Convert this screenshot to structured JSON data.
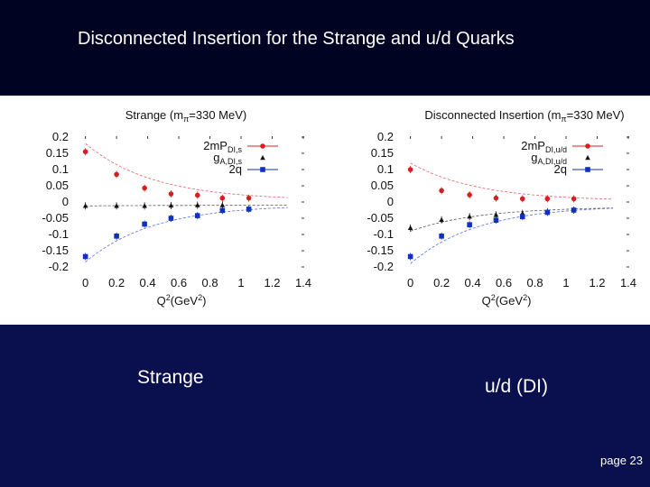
{
  "slide": {
    "title": "Disconnected Insertion for the Strange and u/d Quarks",
    "caption_left": "Strange",
    "caption_right": "u/d (DI)",
    "page": "page 23"
  },
  "colors": {
    "title_band": "#010322",
    "slide_bg": "#0a0f4e",
    "series_red": "#d42020",
    "series_black": "#111111",
    "series_blue": "#1030c0"
  },
  "chart_data": [
    {
      "type": "scatter",
      "title": "Strange (mπ=330 MeV)",
      "title_main": "Strange (m",
      "title_sub": "π",
      "title_tail": "=330 MeV)",
      "xlabel": "Q2(GeV2)",
      "xlabel_parts": [
        "Q",
        "2",
        "(GeV",
        "2",
        ")"
      ],
      "ylabel": "",
      "xlim": [
        -0.05,
        1.4
      ],
      "ylim": [
        -0.2,
        0.2
      ],
      "xticks": [
        "0",
        "0.2",
        "0.4",
        "0.6",
        "0.8",
        "1",
        "1.2",
        "1.4"
      ],
      "yticks": [
        "0.2",
        "0.15",
        "0.1",
        "0.05",
        "0",
        "-0.05",
        "-0.1",
        "-0.15",
        "-0.2"
      ],
      "grid": false,
      "legend_position": "top-right",
      "series": [
        {
          "name": "2mPDI,s",
          "legend_main": "2mP",
          "legend_sub": "DI,s",
          "marker": "circle",
          "color": "#d42020",
          "x": [
            0,
            0.2,
            0.38,
            0.55,
            0.72,
            0.88,
            1.05
          ],
          "y": [
            0.155,
            0.085,
            0.043,
            0.025,
            0.021,
            0.012,
            0.012
          ],
          "fit_x": [
            0,
            1.3
          ],
          "fit_y": [
            0.18,
            0.005
          ]
        },
        {
          "name": "gA,DI,s",
          "legend_main": "g",
          "legend_sub": "A,DI,s",
          "marker": "triangle",
          "color": "#111111",
          "x": [
            0,
            0.2,
            0.38,
            0.55,
            0.72,
            0.88
          ],
          "y": [
            -0.012,
            -0.012,
            -0.012,
            -0.011,
            -0.01,
            -0.01
          ],
          "fit_x": [
            0,
            1.3
          ],
          "fit_y": [
            -0.012,
            -0.01
          ]
        },
        {
          "name": "2q",
          "legend_main": "2q",
          "legend_sub": "",
          "marker": "square",
          "color": "#1030c0",
          "x": [
            0,
            0.2,
            0.38,
            0.55,
            0.72,
            0.88,
            1.05
          ],
          "y": [
            -0.168,
            -0.105,
            -0.068,
            -0.05,
            -0.042,
            -0.026,
            -0.022
          ],
          "fit_x": [
            0,
            1.3
          ],
          "fit_y": [
            -0.185,
            -0.008
          ]
        }
      ]
    },
    {
      "type": "scatter",
      "title": "Disconnected Insertion (mπ=330 MeV)",
      "title_main": "Disconnected Insertion (m",
      "title_sub": "π",
      "title_tail": "=330 MeV)",
      "xlabel": "Q2(GeV2)",
      "xlabel_parts": [
        "Q",
        "2",
        "(GeV",
        "2",
        ")"
      ],
      "ylabel": "",
      "xlim": [
        -0.05,
        1.4
      ],
      "ylim": [
        -0.2,
        0.2
      ],
      "xticks": [
        "0",
        "0.2",
        "0.4",
        "0.6",
        "0.8",
        "1",
        "1.2",
        "1.4"
      ],
      "yticks": [
        "0.2",
        "0.15",
        "0.1",
        "0.05",
        "0",
        "-0.05",
        "-0.1",
        "-0.15",
        "-0.2"
      ],
      "grid": false,
      "legend_position": "top-right",
      "series": [
        {
          "name": "2mPDI,u/d",
          "legend_main": "2mP",
          "legend_sub": "DI,u/d",
          "marker": "circle",
          "color": "#d42020",
          "x": [
            0,
            0.2,
            0.38,
            0.55,
            0.72,
            0.88,
            1.05
          ],
          "y": [
            0.1,
            0.035,
            0.022,
            0.012,
            0.01,
            0.01,
            0.01
          ],
          "fit_x": [
            0,
            1.3
          ],
          "fit_y": [
            0.12,
            0.003
          ]
        },
        {
          "name": "gA,DI,u/d",
          "legend_main": "g",
          "legend_sub": "A,DI,u/d",
          "marker": "triangle",
          "color": "#111111",
          "x": [
            0,
            0.2,
            0.38,
            0.55,
            0.72,
            0.88,
            1.05
          ],
          "y": [
            -0.08,
            -0.055,
            -0.045,
            -0.04,
            -0.035,
            -0.03,
            -0.025
          ],
          "fit_x": [
            0,
            1.3
          ],
          "fit_y": [
            -0.09,
            -0.015
          ]
        },
        {
          "name": "2q",
          "legend_main": "2q",
          "legend_sub": "",
          "marker": "square",
          "color": "#1030c0",
          "x": [
            0,
            0.2,
            0.38,
            0.55,
            0.72,
            0.88,
            1.05
          ],
          "y": [
            -0.168,
            -0.105,
            -0.07,
            -0.056,
            -0.045,
            -0.032,
            -0.025
          ],
          "fit_x": [
            0,
            1.3
          ],
          "fit_y": [
            -0.19,
            -0.01
          ]
        }
      ]
    }
  ]
}
